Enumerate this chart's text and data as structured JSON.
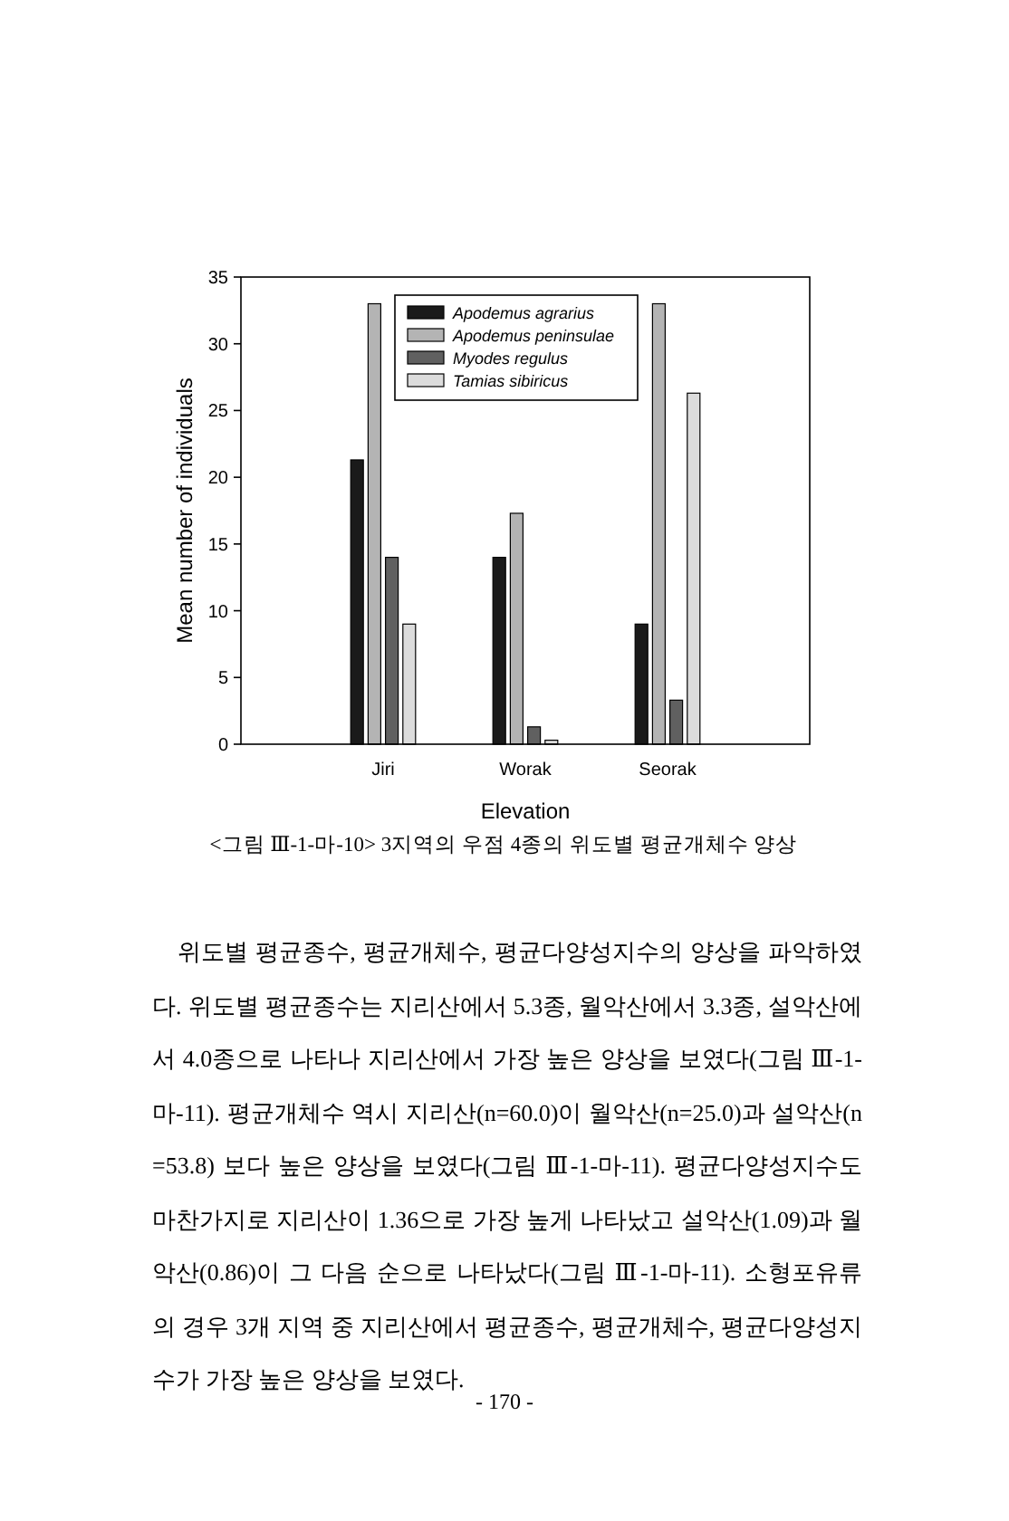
{
  "chart_data": {
    "type": "bar",
    "xlabel": "Elevation",
    "ylabel": "Mean number of individuals",
    "categories": [
      "Jiri",
      "Worak",
      "Seorak"
    ],
    "series": [
      {
        "name": "Apodemus agrarius",
        "color": "#1a1a1a",
        "values": [
          21.3,
          14,
          9
        ]
      },
      {
        "name": "Apodemus peninsulae",
        "color": "#b4b4b4",
        "values": [
          33,
          17.3,
          33
        ]
      },
      {
        "name": "Myodes regulus",
        "color": "#606060",
        "values": [
          14,
          1.3,
          3.3
        ]
      },
      {
        "name": "Tamias sibiricus",
        "color": "#dcdcdc",
        "values": [
          9,
          0.3,
          26.3
        ]
      }
    ],
    "ylim": [
      0,
      35
    ],
    "yticks": [
      0,
      5,
      10,
      15,
      20,
      25,
      30,
      35
    ],
    "grid": false,
    "legend": "top",
    "annotations": [
      "<그림 Ⅲ-1-마-10> 3지역의 우점 4종의 위도별 평균개체수 양상",
      "위도별 평균종수, 평균개체수, 평균다양성지수의 양상을 파악하였다. 위도별 평균종수는 지리산에서 5.3종, 월악산에서 3.3종, 설악산에서 4.0종으로 나타나 지리산에서 가장 높은 양상을 보였다(그림 Ⅲ-1-마-11). 평균개체수 역시 지리산(n=60.0)이 월악산(n=25.0)과 설악산(n=53.8) 보다 높은 양상을 보였다(그림 Ⅲ-1-마-11). 평균다양성지수도 마찬가지로 지리산이 1.36으로 가장 높게 나타났고 설악산(1.09)과 월악산(0.86)이 그 다음 순으로 나타났다(그림 Ⅲ-1-마-11). 소형포유류의 경우 3개 지역 중 지리산에서 평균종수, 평균개체수, 평균다양성지수가 가장 높은 양상을 보였다.",
      "- 170 -"
    ]
  }
}
